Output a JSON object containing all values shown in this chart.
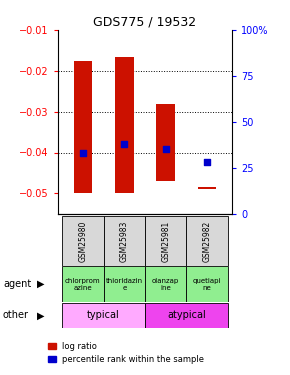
{
  "title": "GDS775 / 19532",
  "samples": [
    "GSM25980",
    "GSM25983",
    "GSM25981",
    "GSM25982"
  ],
  "bar_bottoms": [
    -0.05,
    -0.05,
    -0.047,
    -0.049
  ],
  "bar_tops": [
    -0.0175,
    -0.0165,
    -0.028,
    -0.0485
  ],
  "percentile_ranks": [
    33,
    38,
    35,
    28
  ],
  "agents": [
    "chlorprom\nazine",
    "thioridazin\ne",
    "olanzap\nine",
    "quetiapi\nne"
  ],
  "agent_color": "#90ee90",
  "other_groups": [
    {
      "label": "typical",
      "span": [
        0,
        1
      ],
      "color": "#ffaaff"
    },
    {
      "label": "atypical",
      "span": [
        2,
        3
      ],
      "color": "#ee44ee"
    }
  ],
  "bar_color": "#cc1100",
  "marker_color": "#0000cc",
  "left_ylim": [
    -0.055,
    -0.01
  ],
  "left_yticks": [
    -0.01,
    -0.02,
    -0.03,
    -0.04,
    -0.05
  ],
  "right_yticks_pct": [
    0,
    25,
    50,
    75,
    100
  ],
  "right_ytick_labels": [
    "0",
    "25",
    "50",
    "75",
    "100%"
  ],
  "legend_red": "log ratio",
  "legend_blue": "percentile rank within the sample",
  "bg": "#ffffff"
}
